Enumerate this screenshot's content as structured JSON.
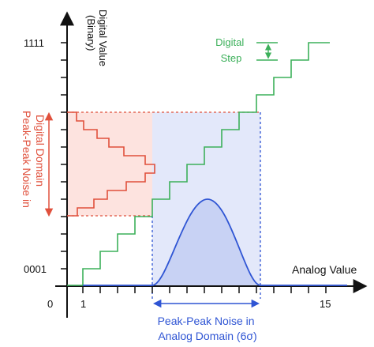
{
  "axes": {
    "y_label_line1": "Digital Value",
    "y_label_line2": "(Binary)",
    "x_label": "Analog Value",
    "y_tick_top": "1111",
    "y_tick_bottom": "0001",
    "origin": "0",
    "x_tick_1": "1",
    "x_tick_15": "15"
  },
  "annotations": {
    "digital_step_line1": "Digital",
    "digital_step_line2": "Step",
    "digital_noise_line1": "Peak-Peak Noise in",
    "digital_noise_line2": "Digital Domain",
    "analog_noise_line1": "Peak-Peak Noise in",
    "analog_noise_line2": "Analog Domain (6σ)"
  },
  "colors": {
    "axis": "#111111",
    "staircase": "#3cb05a",
    "digital_noise": "#e0503c",
    "digital_noise_fill": "#fde3df",
    "analog_noise": "#2f55d4",
    "analog_noise_fill": "#e3e8fa"
  }
}
